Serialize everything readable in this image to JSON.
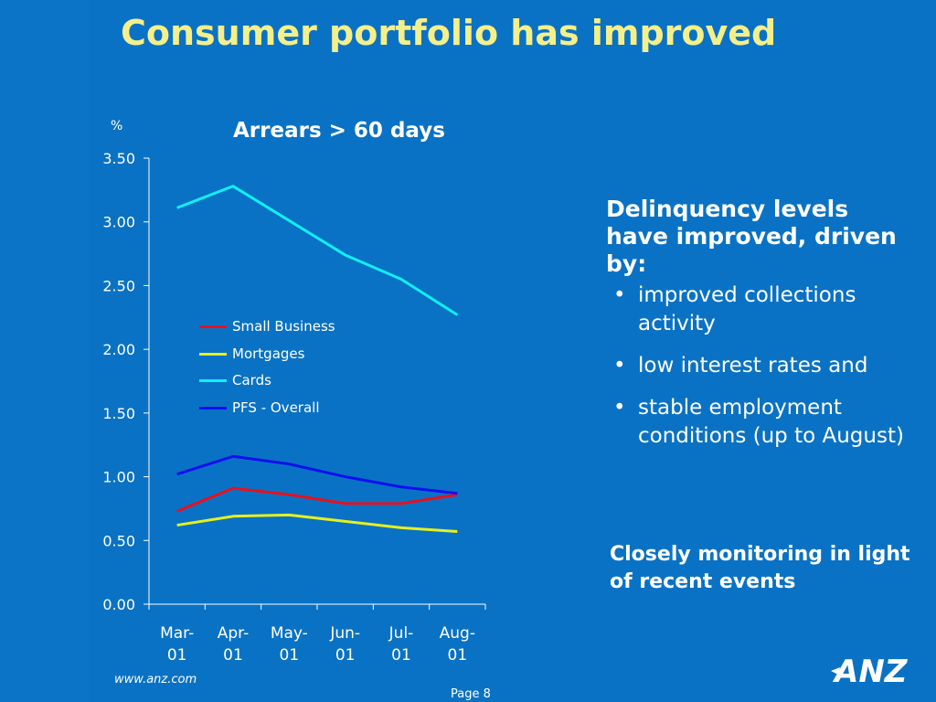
{
  "slide": {
    "title": "Consumer portfolio has improved",
    "footer_url": "www.anz.com",
    "page_label": "Page 8",
    "logo_text": "ANZ"
  },
  "colors": {
    "background": "#0a72c4",
    "title": "#f5ef8a",
    "text": "#ffffff"
  },
  "chart_data": {
    "type": "line",
    "title": "Arrears > 60 days",
    "ylabel": "%",
    "xlabel": "",
    "categories": [
      "Mar-01",
      "Apr-01",
      "May-01",
      "Jun-01",
      "Jul-01",
      "Aug-01"
    ],
    "category_lines": [
      [
        "Mar-",
        "01"
      ],
      [
        "Apr-",
        "01"
      ],
      [
        "May-",
        "01"
      ],
      [
        "Jun-",
        "01"
      ],
      [
        "Jul-",
        "01"
      ],
      [
        "Aug-",
        "01"
      ]
    ],
    "ylim": [
      0,
      3.5
    ],
    "yticks": [
      "0.00",
      "0.50",
      "1.00",
      "1.50",
      "2.00",
      "2.50",
      "3.00",
      "3.50"
    ],
    "ytick_values": [
      0,
      0.5,
      1.0,
      1.5,
      2.0,
      2.5,
      3.0,
      3.5
    ],
    "grid": false,
    "legend_position": "center-left",
    "series": [
      {
        "name": "Small Business",
        "color": "#e8101e",
        "values": [
          0.73,
          0.91,
          0.86,
          0.79,
          0.79,
          0.86
        ]
      },
      {
        "name": "Mortgages",
        "color": "#e6f01e",
        "values": [
          0.62,
          0.69,
          0.7,
          0.65,
          0.6,
          0.57
        ]
      },
      {
        "name": "Cards",
        "color": "#10f0f8",
        "values": [
          3.11,
          3.28,
          3.01,
          2.74,
          2.55,
          2.27
        ]
      },
      {
        "name": "PFS - Overall",
        "color": "#1010f0",
        "values": [
          1.02,
          1.16,
          1.1,
          1.0,
          0.92,
          0.87
        ]
      }
    ]
  },
  "commentary": {
    "heading": "Delinquency levels have improved, driven by:",
    "bullets": [
      "improved collections activity",
      "low interest rates and",
      "stable employment conditions (up to August)"
    ],
    "bullet_symbol": "•",
    "note": "Closely monitoring in light of recent events"
  }
}
